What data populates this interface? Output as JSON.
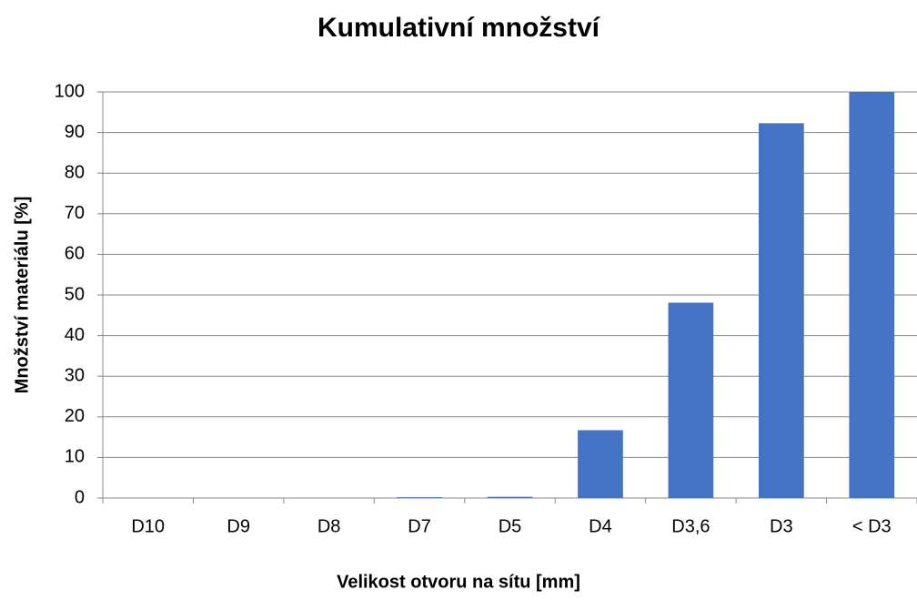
{
  "chart_data": {
    "type": "bar",
    "title": "Kumulativní množství",
    "x_label": "Velikost otvoru na sítu [mm]",
    "y_label": "Množství materiálu [%]",
    "categories": [
      "D10",
      "D9",
      "D8",
      "D7",
      "D5",
      "D4",
      "D3,6",
      "D3",
      "< D3"
    ],
    "values": [
      0,
      0,
      0,
      0.2,
      0.3,
      16.7,
      48.1,
      92.3,
      100
    ],
    "color": "#4472c4",
    "ylim": [
      0,
      100
    ],
    "yticks": [
      0,
      10,
      20,
      30,
      40,
      50,
      60,
      70,
      80,
      90,
      100
    ],
    "grid": true
  }
}
